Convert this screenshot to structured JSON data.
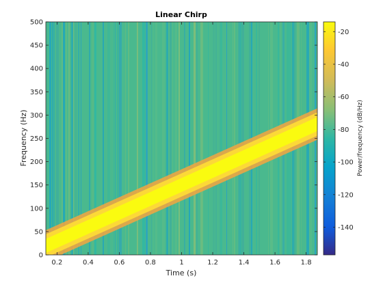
{
  "chart_data": {
    "type": "heatmap",
    "title": "Linear Chirp",
    "xlabel": "Time (s)",
    "ylabel": "Frequency (Hz)",
    "colorbar_label": "Power/frequency (dB/Hz)",
    "xlim": [
      0.128,
      1.872
    ],
    "ylim": [
      0,
      500
    ],
    "xticks": [
      0.2,
      0.4,
      0.6,
      0.8,
      1,
      1.2,
      1.4,
      1.6,
      1.8
    ],
    "xtick_labels": [
      "0.2",
      "0.4",
      "0.6",
      "0.8",
      "1",
      "1.2",
      "1.4",
      "1.6",
      "1.8"
    ],
    "yticks": [
      0,
      50,
      100,
      150,
      200,
      250,
      300,
      350,
      400,
      450,
      500
    ],
    "ytick_labels": [
      "0",
      "50",
      "100",
      "150",
      "200",
      "250",
      "300",
      "350",
      "400",
      "450",
      "500"
    ],
    "clim": [
      -157,
      -14
    ],
    "cticks": [
      -140,
      -120,
      -100,
      -80,
      -60,
      -40,
      -20
    ],
    "ctick_labels": [
      "-140",
      "-120",
      "-100",
      "-80",
      "-60",
      "-40",
      "-20"
    ],
    "colormap": "parula",
    "chirp": {
      "f0_hz": 0,
      "f_at_1s_hz": 150,
      "slope_hz_per_s": 150
    },
    "ridge_power_db": -15,
    "background_power_db": -65,
    "ridge_halfwidth_hz": 25,
    "grid": false
  }
}
